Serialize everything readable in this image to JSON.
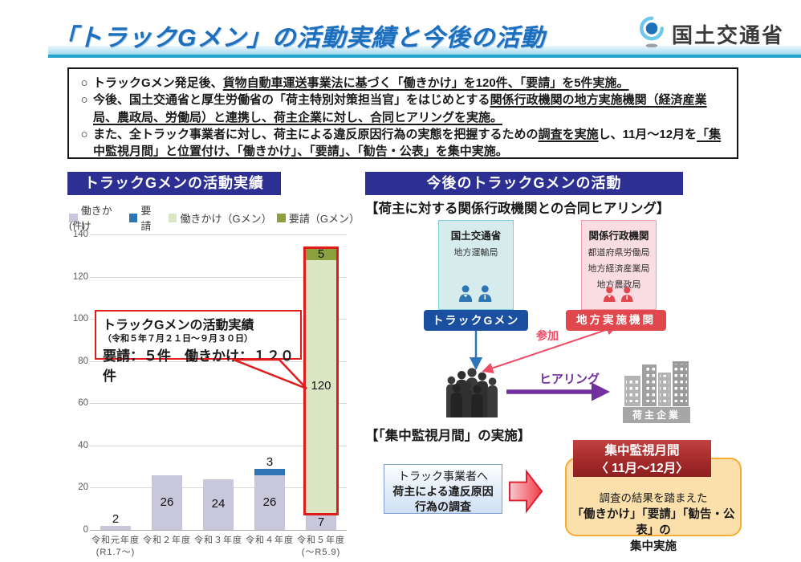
{
  "header": {
    "title": "「トラックGメン」の活動実績と今後の活動",
    "logo_text": "国土交通省"
  },
  "colors": {
    "accent_indigo": "#2d3092",
    "band_teal": "#25a5cd",
    "red_highlight": "#e01b1b",
    "gmen_blue": "#1b4fa0",
    "local_red": "#e0484d",
    "participation_pink": "#f14b66",
    "hearing_purple": "#7030a0",
    "monitor_dark_red": "#9e2626",
    "monitor_orange_bg": "#fbe0ab"
  },
  "summary_bullets": [
    {
      "segments": [
        {
          "text": "トラックGメン発足後、",
          "underline": false
        },
        {
          "text": "貨物自動車運送事業法に基づく「働きかけ」を120件、「要請」を5件実施。",
          "underline": true
        }
      ]
    },
    {
      "segments": [
        {
          "text": "今後、国土交通省と厚生労働省の「荷主特別対策担当官」をはじめとする",
          "underline": false
        },
        {
          "text": "関係行政機関の地方実施機関（経済産業局、農政局、労働局）と連携し、荷主企業に対し、合同ヒアリングを実施。",
          "underline": true
        }
      ]
    },
    {
      "segments": [
        {
          "text": "また、全トラック事業者に対し、荷主による違反原因行為の実態を把握するための",
          "underline": false
        },
        {
          "text": "調査を実施",
          "underline": true
        },
        {
          "text": "し、11月～12月を",
          "underline": false
        },
        {
          "text": "「集中監視月間」と位置付け、「働きかけ」、「要請」、「勧告・公表」を集中実施。",
          "underline": true
        }
      ]
    }
  ],
  "left_panel": {
    "header": "トラックGメンの活動実績"
  },
  "chart_data": {
    "type": "bar",
    "stacked": true,
    "unit_label": "(件)",
    "categories": [
      [
        "令和元年度",
        "(R1.7～)"
      ],
      [
        "令和２年度"
      ],
      [
        "令和３年度"
      ],
      [
        "令和４年度"
      ],
      [
        "令和５年度",
        "(～R5.9)"
      ]
    ],
    "series": [
      {
        "name": "働きかけ",
        "color": "#c9c7db",
        "values": [
          2,
          26,
          24,
          26,
          7
        ]
      },
      {
        "name": "要請",
        "color": "#2e75b6",
        "values": [
          0,
          0,
          0,
          3,
          1
        ]
      },
      {
        "name": "働きかけ（Gメン）",
        "color": "#dbe6c4",
        "values": [
          0,
          0,
          0,
          0,
          120
        ]
      },
      {
        "name": "要請（Gメン）",
        "color": "#8ba03e",
        "values": [
          0,
          0,
          0,
          0,
          5
        ]
      }
    ],
    "ylim": [
      0,
      140
    ],
    "ytick_step": 20,
    "grid": true,
    "legend_position": "top",
    "highlight_box": {
      "bar_index": 4,
      "from_value": 8,
      "to_value": 133,
      "color": "#e01b1b"
    },
    "annotation": {
      "title": "トラックGメンの活動実績",
      "subtitle": "（令和５年７月２１日～９月３０日）",
      "body": "要請：５件　働きかけ：１２０件"
    }
  },
  "right_panel": {
    "header": "今後のトラックGメンの活動",
    "section1_title": "【荷主に対する関係行政機関との合同ヒアリング】",
    "mlit_box": {
      "title": "国土交通省",
      "sub": "地方運輸局",
      "label": "トラックGメン"
    },
    "agency_box": {
      "title": "関係行政機関",
      "items": [
        "都道府県労働局",
        "地方経済産業局",
        "地方農政局"
      ],
      "label": "地方実施機関"
    },
    "arrow_labels": {
      "participation": "参加",
      "hearing": "ヒアリング"
    },
    "shipper_label": "荷主企業",
    "section2_title": "【「集中監視月間」の実施】",
    "survey_box": {
      "line1": "トラック事業者へ",
      "line2": "荷主による違反原因",
      "line3": "行為の調査"
    },
    "monitoring": {
      "header_line1": "集中監視月間",
      "header_line2": "〈 11月～12月〉",
      "body_line1": "調査の結果を踏まえた",
      "body_line2": "「働きかけ」「要請」「勧告・公表」の",
      "body_line3": "集中実施"
    }
  }
}
